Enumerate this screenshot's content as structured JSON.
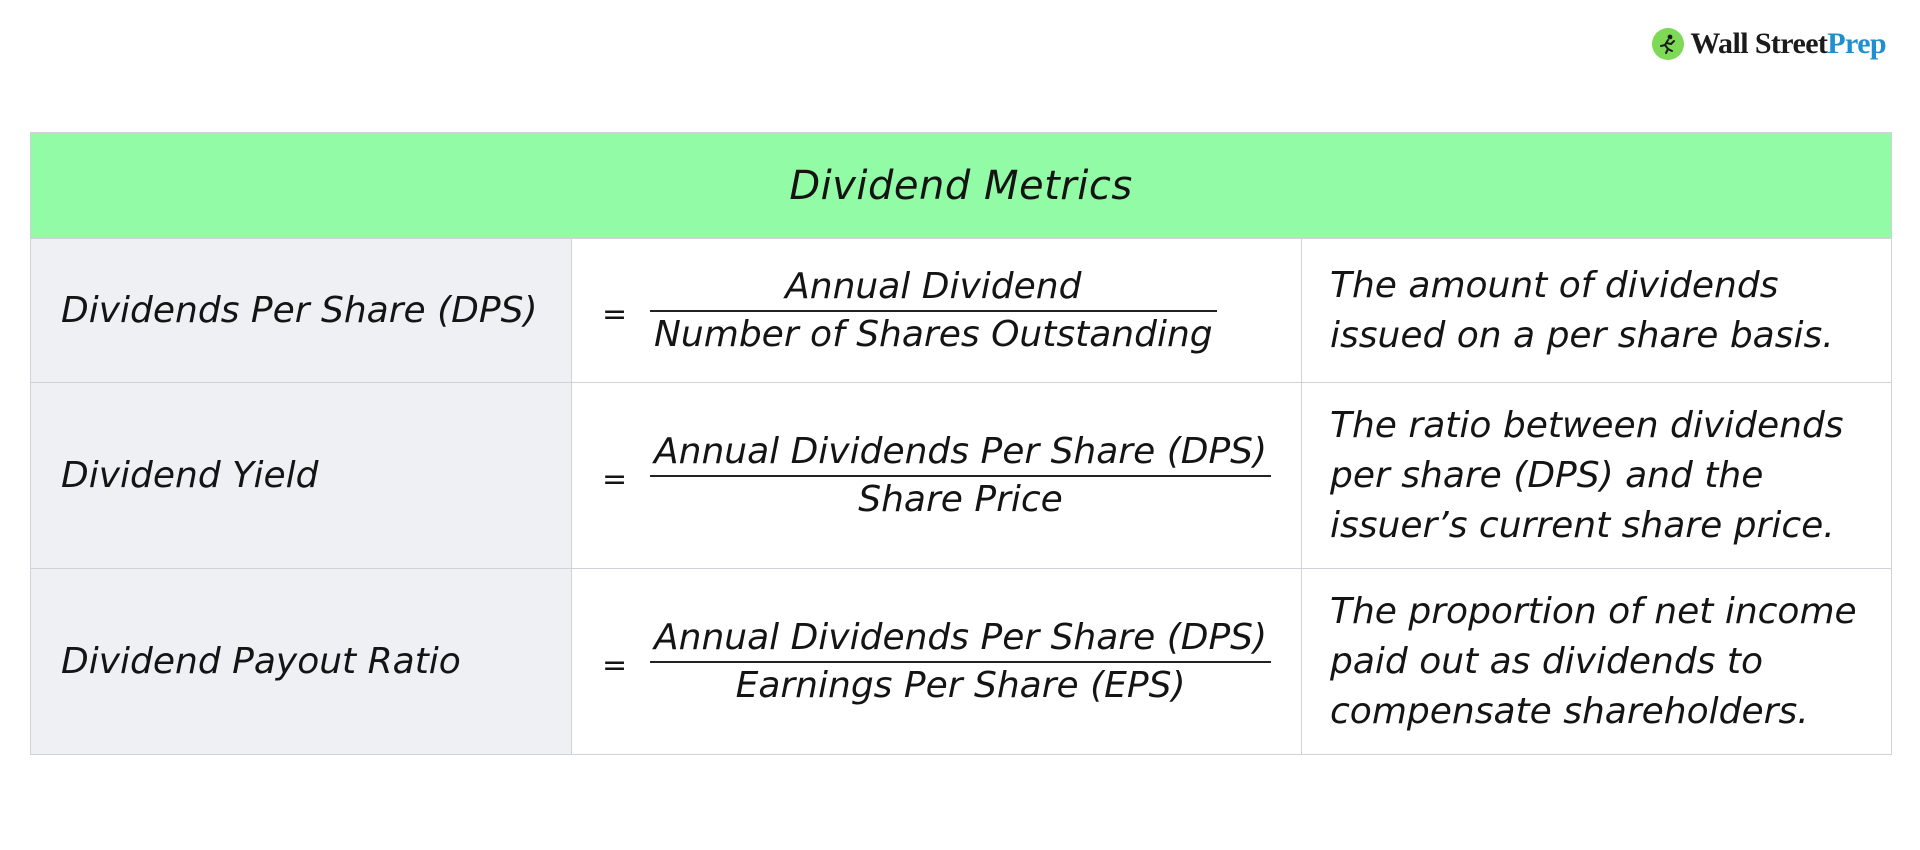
{
  "logo": {
    "word1": "Wall Street",
    "word2": "Prep",
    "icon": "running-man-icon"
  },
  "table": {
    "title": "Dividend Metrics",
    "rows": [
      {
        "name": "Dividends Per Share (DPS)",
        "equals": "=",
        "numerator": "Annual Dividend",
        "denominator": "Number of Shares Outstanding",
        "description": [
          "The amount of dividends",
          "issued on a per share basis."
        ]
      },
      {
        "name": "Dividend Yield",
        "equals": "=",
        "numerator": "Annual Dividends Per Share (DPS)",
        "denominator": "Share Price",
        "description": [
          "The ratio between dividends",
          "per share (DPS) and the",
          "issuer’s current share price."
        ]
      },
      {
        "name": "Dividend Payout Ratio",
        "equals": "=",
        "numerator": "Annual Dividends Per Share (DPS)",
        "denominator": "Earnings Per Share (EPS)",
        "description": [
          "The proportion of net income",
          "paid out as dividends to",
          "compensate shareholders."
        ]
      }
    ]
  },
  "colors": {
    "header_bg": "#92fba5",
    "name_col_bg": "#eff0f3",
    "border": "#cfd2d8",
    "logo_green": "#7ed957",
    "logo_blue": "#1f8fd0"
  }
}
